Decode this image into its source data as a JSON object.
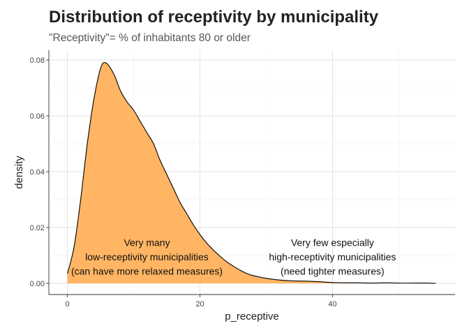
{
  "chart_data": {
    "type": "area",
    "title": "Distribution of receptivity by municipality",
    "subtitle": "\"Receptivity\"= % of inhabitants 80 or older",
    "xlabel": "p_receptive",
    "ylabel": "density",
    "xlim": [
      -2.8,
      58.5
    ],
    "ylim": [
      -0.004,
      0.0835
    ],
    "x_ticks": [
      0,
      20,
      40
    ],
    "x_tick_labels": [
      "0",
      "20",
      "40"
    ],
    "y_ticks": [
      0.0,
      0.02,
      0.04,
      0.06,
      0.08
    ],
    "y_tick_labels": [
      "0.00",
      "0.02",
      "0.04",
      "0.06",
      "0.08"
    ],
    "grid": true,
    "fill_color": "#ffb563",
    "line_color": "#000000",
    "series": [
      {
        "x": [
          0.0,
          1,
          2,
          3,
          4,
          5,
          5.8,
          7,
          8,
          9,
          10,
          11,
          12,
          13,
          14,
          15,
          16,
          17,
          18,
          19,
          20,
          21,
          22,
          23,
          24,
          25,
          26,
          27,
          28,
          30,
          32,
          34,
          36,
          38,
          40,
          42,
          44,
          46,
          48,
          50,
          52,
          54,
          55.6
        ],
        "y": [
          0.0035,
          0.013,
          0.03,
          0.05,
          0.066,
          0.077,
          0.079,
          0.075,
          0.069,
          0.065,
          0.062,
          0.058,
          0.054,
          0.05,
          0.044,
          0.039,
          0.034,
          0.029,
          0.025,
          0.021,
          0.0175,
          0.0145,
          0.012,
          0.0098,
          0.0078,
          0.0062,
          0.0048,
          0.0036,
          0.0028,
          0.0018,
          0.0012,
          0.0009,
          0.0008,
          0.0006,
          0.0003,
          0.0002,
          0.0002,
          0.0001,
          0.0002,
          0.0001,
          0.0001,
          0.0001,
          0.0
        ]
      }
    ],
    "annotations": [
      {
        "x": 12,
        "y": 0.0095,
        "lines": [
          "Very many",
          "low-receptivity municipalities",
          "(can have more relaxed measures)"
        ]
      },
      {
        "x": 40,
        "y": 0.0095,
        "lines": [
          "Very few especially",
          "high-receptivity municipalities",
          "(need tighter measures)"
        ]
      }
    ]
  }
}
